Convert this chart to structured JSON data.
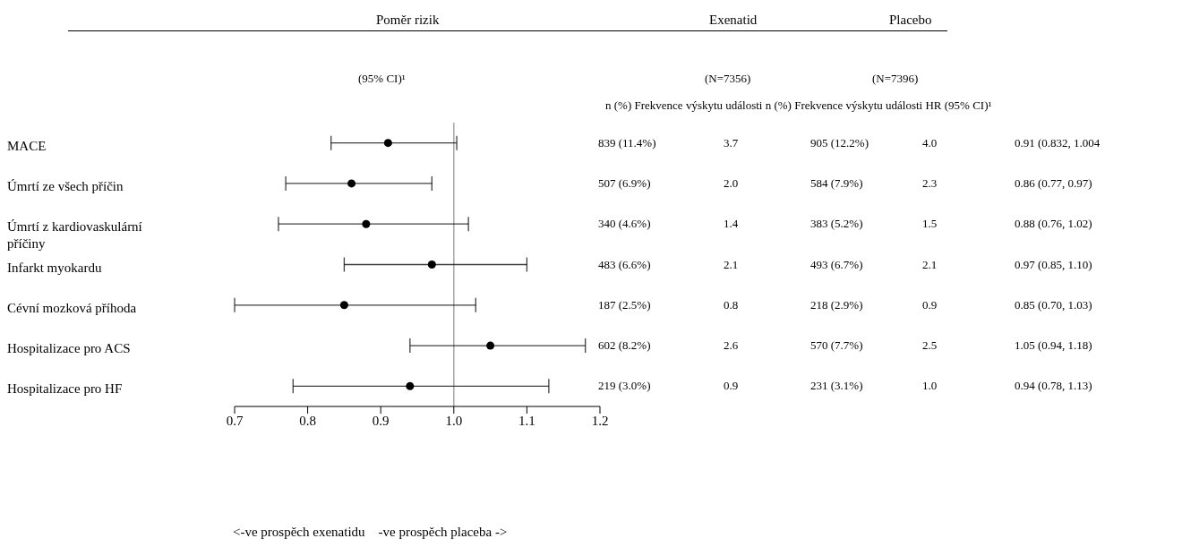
{
  "chart_data": {
    "type": "scatter",
    "orientation": "horizontal",
    "title": "Poměr rizik",
    "subtitle": "(95% CI)¹",
    "categories": [
      "MACE",
      "Úmrtí ze všech příčin",
      "Úmrtí z kardiovaskulární příčiny",
      "Infarkt myokardu",
      "Cévní mozková příhoda",
      "Hospitalizace pro ACS",
      "Hospitalizace pro HF"
    ],
    "series": [
      {
        "color": "#000000",
        "values": [
          0.91,
          0.86,
          0.88,
          0.97,
          0.85,
          1.05,
          0.94
        ],
        "errors": [
          [
            0.832,
            1.004
          ],
          [
            0.77,
            0.97
          ],
          [
            0.76,
            1.02
          ],
          [
            0.85,
            1.1
          ],
          [
            0.7,
            1.03
          ],
          [
            0.94,
            1.18
          ],
          [
            0.78,
            1.13
          ]
        ]
      }
    ],
    "marker": "circle",
    "xlim": [
      0.7,
      1.2
    ],
    "xticks": [
      0.7,
      0.8,
      0.9,
      {
        "value": 1.0,
        "label": "1.0"
      },
      1.1,
      1.2
    ],
    "ref_lines": [
      {
        "axis": "x",
        "value": 1.0,
        "color": "#a6a6a6"
      }
    ],
    "annotations": [
      "Exenatid",
      "Placebo",
      "(N=7356)",
      "(N=7396)",
      "n (%) Frekvence výskytu události n (%) Frekvence výskytu události HR (95% CI)¹",
      "839 (11.4%)",
      "3.7",
      "905 (12.2%)",
      "4.0",
      "0.91 (0.832, 1.004",
      "507 (6.9%)",
      "2.0",
      "584 (7.9%)",
      "2.3",
      "0.86 (0.77, 0.97)",
      "340 (4.6%)",
      "1.4",
      "383 (5.2%)",
      "1.5",
      "0.88 (0.76, 1.02)",
      "483 (6.6%)",
      "2.1",
      "493 (6.7%)",
      "2.1",
      "0.97 (0.85, 1.10)",
      "187 (2.5%)",
      "0.8",
      "218 (2.9%)",
      "0.9",
      "0.85 (0.70, 1.03)",
      "602 (8.2%)",
      "2.6",
      "570 (7.7%)",
      "2.5",
      "1.05 (0.94, 1.18)",
      "219 (3.0%)",
      "0.9",
      "231 (3.1%)",
      "1.0",
      "0.94 (0.78, 1.13)",
      "<-ve prospěch exenatidu    -ve prospěch placeba ->"
    ],
    "grid": false,
    "legend": false
  }
}
